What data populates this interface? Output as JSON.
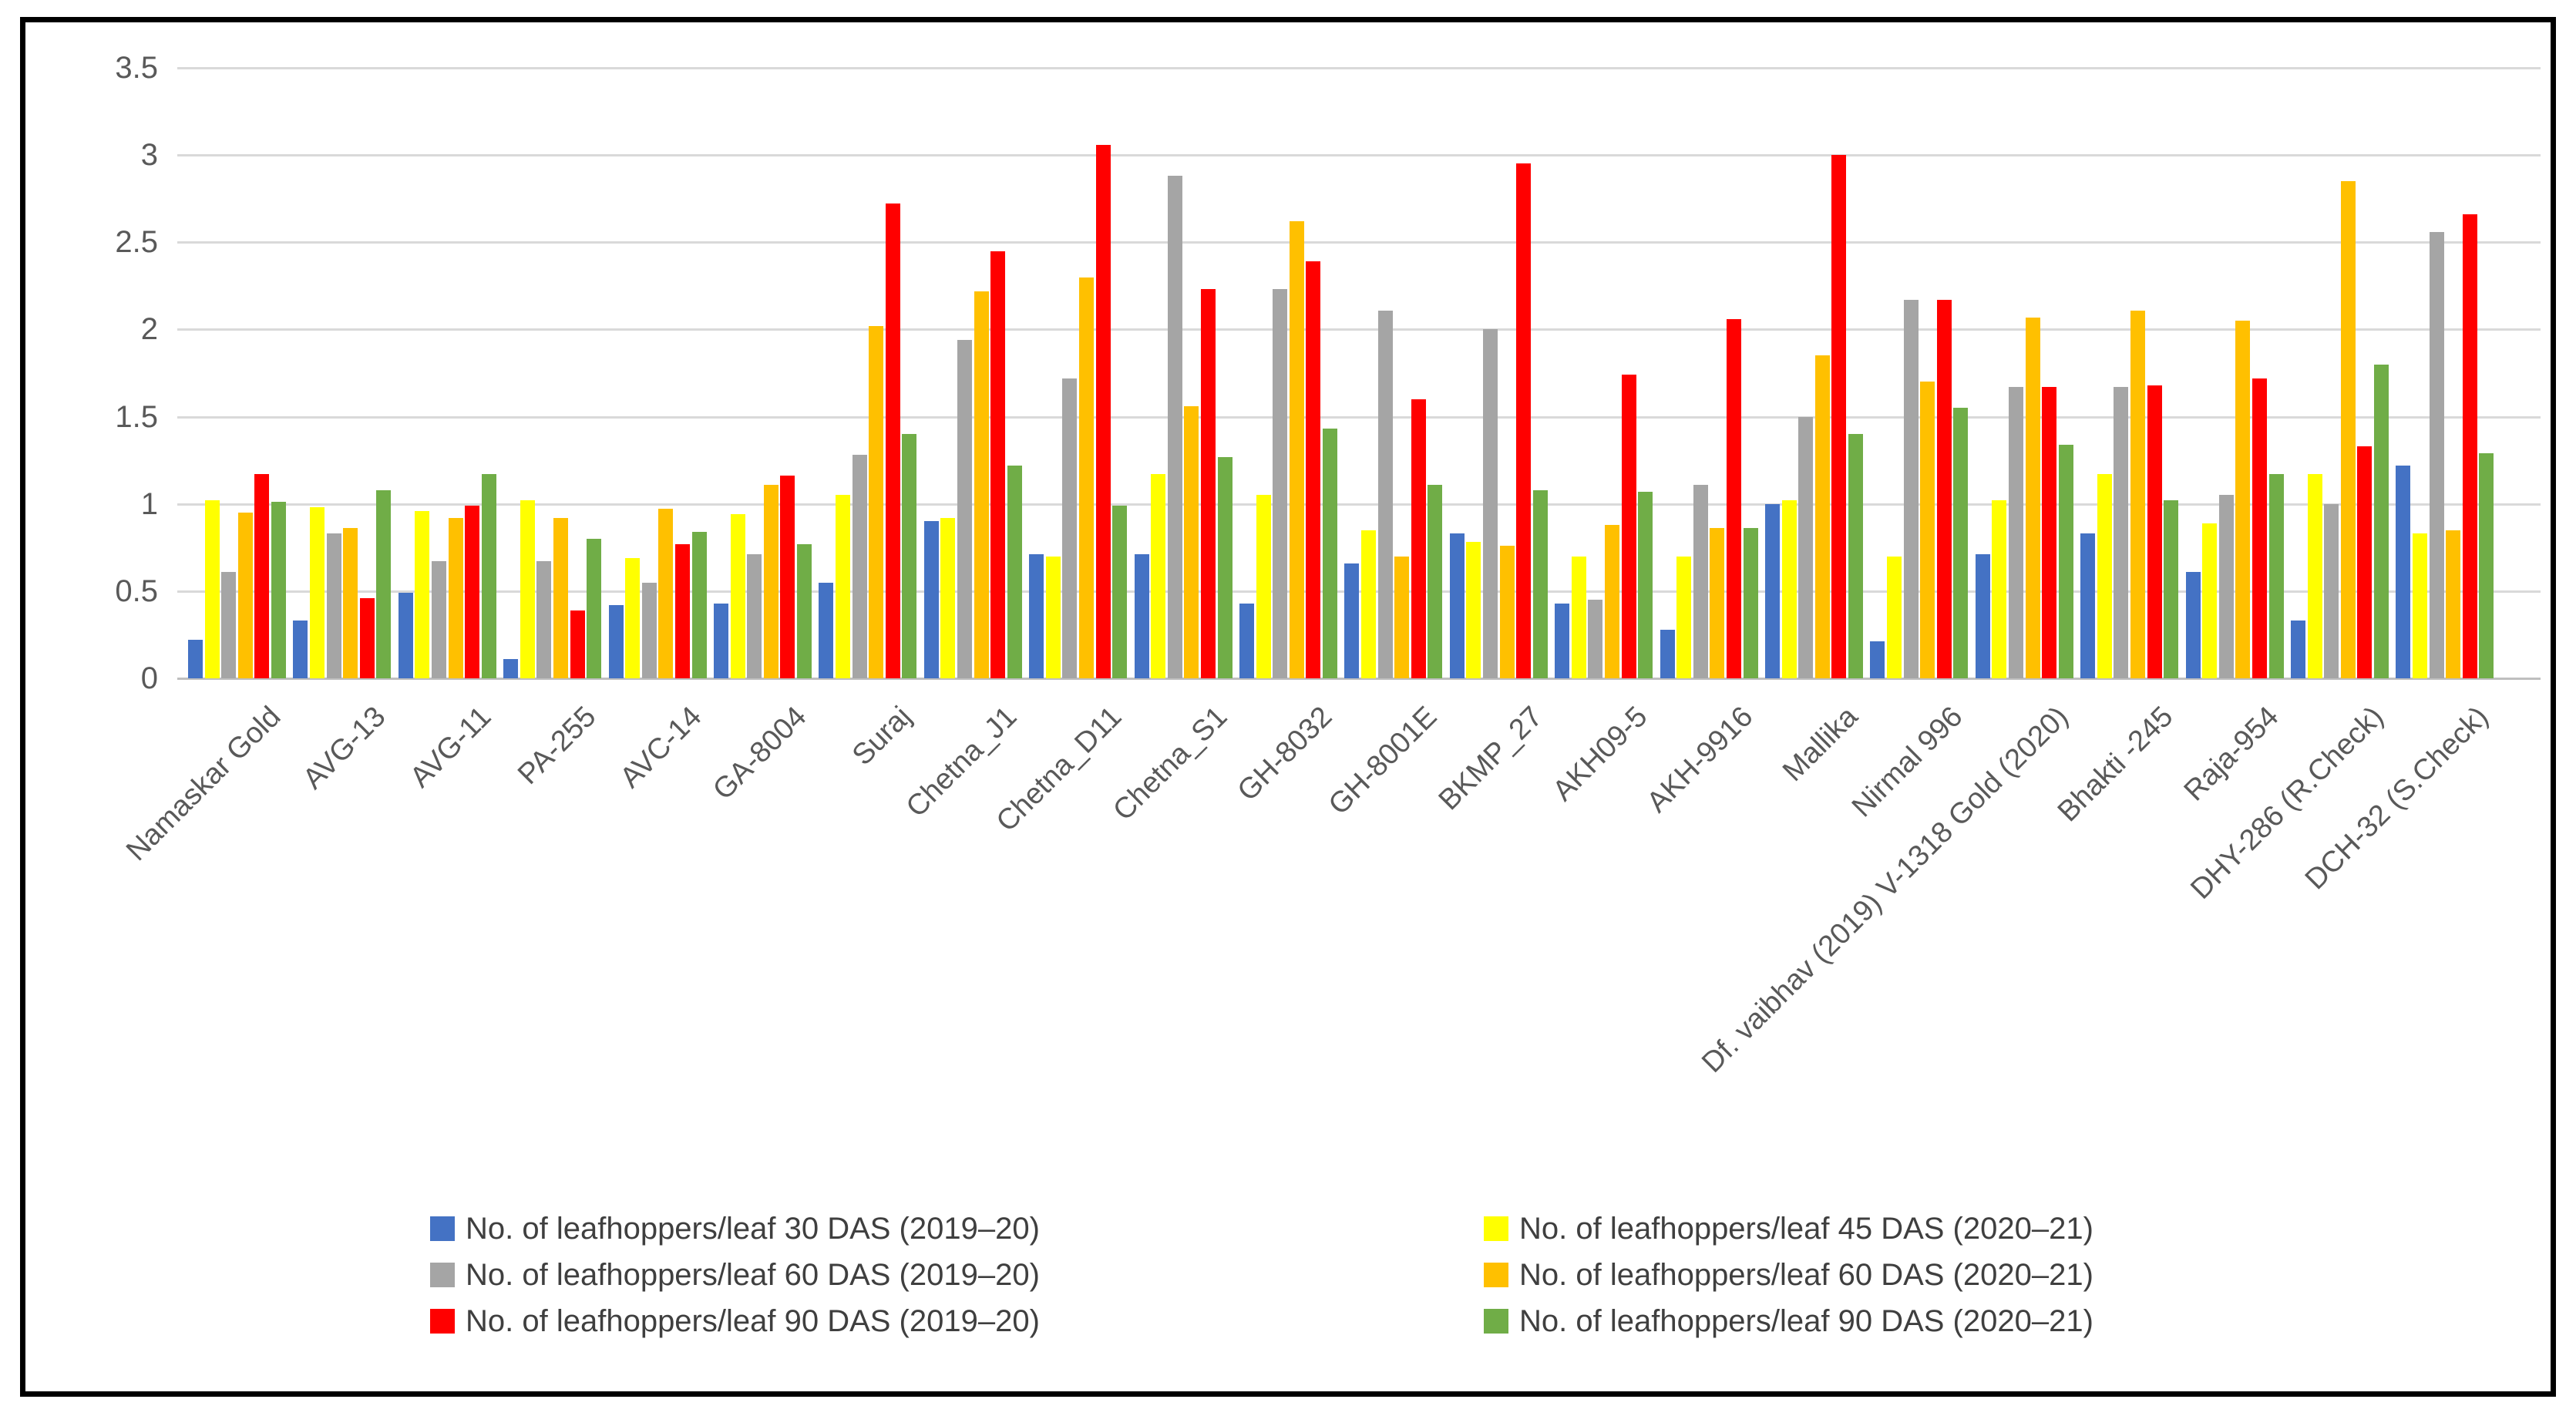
{
  "chart_data": {
    "type": "bar",
    "title": "",
    "xlabel": "",
    "ylabel": "",
    "ylim": [
      0,
      3.5
    ],
    "yticks": [
      0,
      0.5,
      1,
      1.5,
      2,
      2.5,
      3,
      3.5
    ],
    "grid": true,
    "legend_position": "bottom-two-columns",
    "categories": [
      "Namaskar Gold",
      "AVG-13",
      "AVG-11",
      "PA-255",
      "AVC-14",
      "GA-8004",
      "Suraj",
      "Chetna_J1",
      "Chetna_D11",
      "Chetna_S1",
      "GH-8032",
      "GH-8001E",
      "BKMP_27",
      "AKH09-5",
      "AKH-9916",
      "Mallika",
      "Nirmal 996",
      "Df. vaibhav (2019) V-1318 Gold (2020)",
      "Bhakti -245",
      "Raja-954",
      "DHY-286 (R.Check)",
      "DCH-32 (S.Check)"
    ],
    "series": [
      {
        "name": "No. of leafhoppers/leaf 30 DAS (2019–20)",
        "color": "#4472C4",
        "values": [
          0.22,
          0.33,
          0.49,
          0.11,
          0.42,
          0.43,
          0.55,
          0.9,
          0.71,
          0.71,
          0.43,
          0.66,
          0.83,
          0.43,
          0.28,
          1.0,
          0.21,
          0.71,
          0.83,
          0.61,
          0.33,
          1.22
        ]
      },
      {
        "name": "No. of leafhoppers/leaf 45 DAS (2020–21)",
        "color": "#FFFF00",
        "values": [
          1.02,
          0.98,
          0.96,
          1.02,
          0.69,
          0.94,
          1.05,
          0.92,
          0.7,
          1.17,
          1.05,
          0.85,
          0.78,
          0.7,
          0.7,
          1.02,
          0.7,
          1.02,
          1.17,
          0.89,
          1.17,
          0.83
        ]
      },
      {
        "name": "No. of leafhoppers/leaf 60 DAS (2019–20)",
        "color": "#A5A5A5",
        "values": [
          0.61,
          0.83,
          0.67,
          0.67,
          0.55,
          0.71,
          1.28,
          1.94,
          1.72,
          2.88,
          2.23,
          2.11,
          2.0,
          0.45,
          1.11,
          1.5,
          2.17,
          1.67,
          1.67,
          1.05,
          1.0,
          2.56
        ]
      },
      {
        "name": "No. of leafhoppers/leaf 60 DAS (2020–21)",
        "color": "#FFC000",
        "values": [
          0.95,
          0.86,
          0.92,
          0.92,
          0.97,
          1.11,
          2.02,
          2.22,
          2.3,
          1.56,
          2.62,
          0.7,
          0.76,
          0.88,
          0.86,
          1.85,
          1.7,
          2.07,
          2.11,
          2.05,
          2.85,
          0.85
        ]
      },
      {
        "name": "No. of leafhoppers/leaf 90 DAS (2019–20)",
        "color": "#FF0000",
        "values": [
          1.17,
          0.46,
          0.99,
          0.39,
          0.77,
          1.16,
          2.72,
          2.45,
          3.06,
          2.23,
          2.39,
          1.6,
          2.95,
          1.74,
          2.06,
          3.0,
          2.17,
          1.67,
          1.68,
          1.72,
          1.33,
          2.66
        ]
      },
      {
        "name": "No. of leafhoppers/leaf 90 DAS (2020–21)",
        "color": "#70AD47",
        "values": [
          1.01,
          1.08,
          1.17,
          0.8,
          0.84,
          0.77,
          1.4,
          1.22,
          0.99,
          1.27,
          1.43,
          1.11,
          1.08,
          1.07,
          0.86,
          1.4,
          1.55,
          1.34,
          1.02,
          1.17,
          1.8,
          1.29
        ]
      }
    ],
    "legend_columns": [
      [
        "No. of leafhoppers/leaf 30 DAS (2019–20)",
        "No. of leafhoppers/leaf 60 DAS (2019–20)",
        "No. of leafhoppers/leaf 90 DAS (2019–20)"
      ],
      [
        "No. of leafhoppers/leaf 45 DAS (2020–21)",
        "No. of leafhoppers/leaf 60 DAS (2020–21)",
        "No. of leafhoppers/leaf 90 DAS (2020–21)"
      ]
    ],
    "colors": {
      "gridline": "#D9D9D9",
      "axis_line": "#BFBFBF",
      "tick_text": "#595959",
      "legend_text": "#3F3F3F"
    }
  }
}
